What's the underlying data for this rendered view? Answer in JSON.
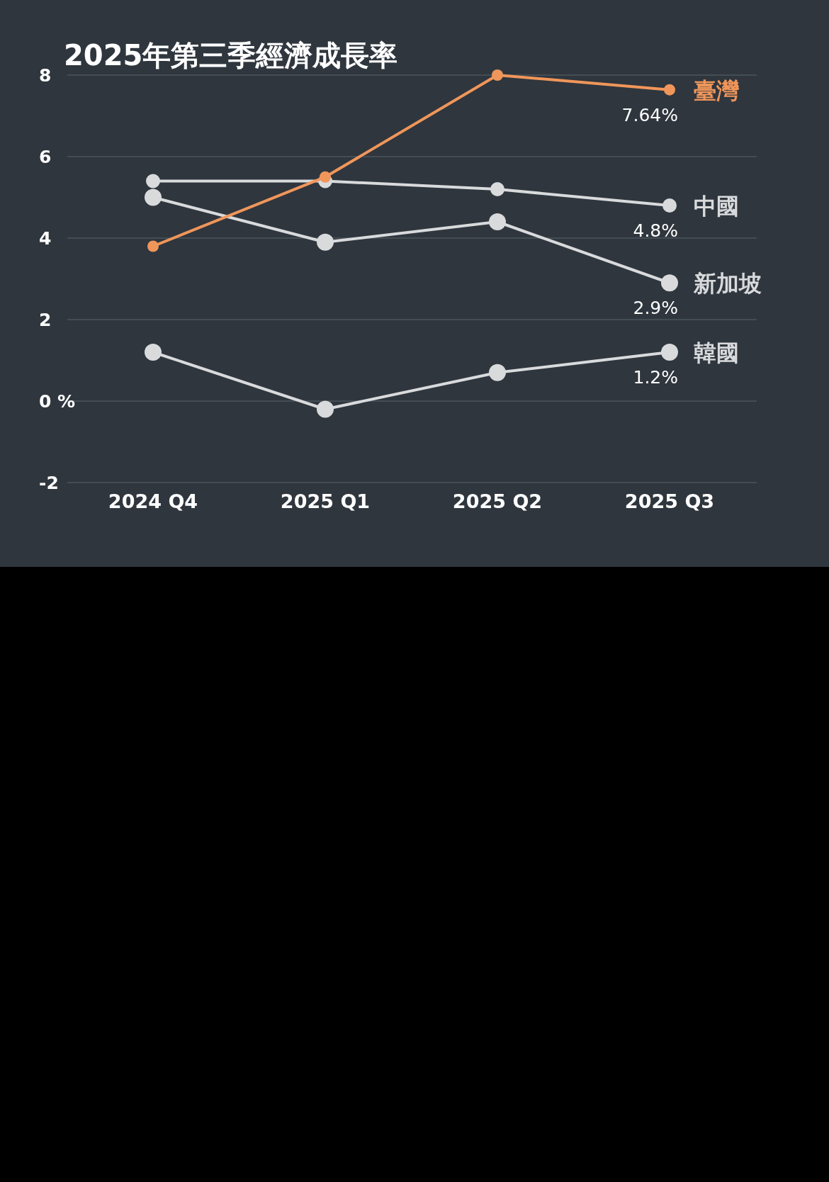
{
  "chart_data": {
    "type": "line",
    "title": "2025年第三季經濟成長率",
    "categories": [
      "2024 Q4",
      "2025 Q1",
      "2025 Q2",
      "2025 Q3"
    ],
    "series": [
      {
        "name": "臺灣",
        "color": "#f0965a",
        "values": [
          3.8,
          5.5,
          8.0,
          7.64
        ],
        "value_labels": [
          null,
          null,
          null,
          "7.64%"
        ]
      },
      {
        "name": "中國",
        "color": "#d9dadc",
        "values": [
          5.4,
          5.4,
          5.2,
          4.8
        ],
        "value_labels": [
          null,
          null,
          null,
          "4.8%"
        ]
      },
      {
        "name": "新加坡",
        "color": "#d9dadc",
        "values": [
          5.0,
          3.9,
          4.4,
          2.9
        ],
        "value_labels": [
          null,
          null,
          null,
          "2.9%"
        ]
      },
      {
        "name": "韓國",
        "color": "#d9dadc",
        "values": [
          1.2,
          -0.2,
          0.7,
          1.2
        ],
        "value_labels": [
          null,
          null,
          null,
          "1.2%"
        ]
      }
    ],
    "ylim": [
      -2,
      8
    ],
    "yticks": [
      -2,
      {
        "value": 0,
        "label": "0 %"
      },
      2,
      4,
      6,
      8
    ],
    "grid": "y",
    "marker": "circle",
    "line_style": "solid"
  }
}
